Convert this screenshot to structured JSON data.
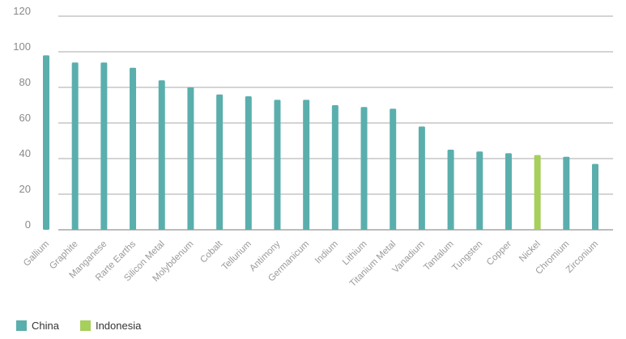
{
  "chart_data": {
    "type": "bar",
    "title": "",
    "xlabel": "",
    "ylabel": "",
    "ylim": [
      0,
      120
    ],
    "yticks": [
      0,
      20,
      40,
      60,
      80,
      100,
      120
    ],
    "grid": true,
    "legend_position": "bottom-left",
    "categories": [
      "Gallium",
      "Graphite",
      "Manganese",
      "Rarte Earths",
      "Silicon Metal",
      "Molybdenum",
      "Cobalt",
      "Tellurium",
      "Antimony",
      "Germanicum",
      "Indium",
      "Lithium",
      "Titanium Metal",
      "Vanadium",
      "Tantalum",
      "Tungsten",
      "Copper",
      "Nickel",
      "Chromium",
      "Zirconium"
    ],
    "values": [
      98,
      94,
      94,
      91,
      84,
      80,
      76,
      75,
      73,
      73,
      70,
      69,
      68,
      58,
      45,
      44,
      43,
      42,
      41,
      37
    ],
    "country": [
      "China",
      "China",
      "China",
      "China",
      "China",
      "China",
      "China",
      "China",
      "China",
      "China",
      "China",
      "China",
      "China",
      "China",
      "China",
      "China",
      "China",
      "Indonesia",
      "China",
      "China"
    ],
    "legend": [
      {
        "name": "China",
        "color": "#5aafad"
      },
      {
        "name": "Indonesia",
        "color": "#a6cf5b"
      }
    ]
  }
}
